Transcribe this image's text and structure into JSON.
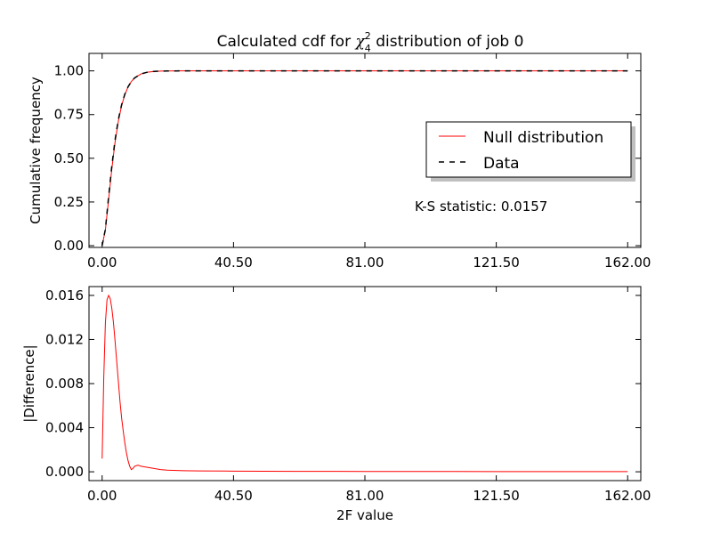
{
  "title": {
    "prefix": "Calculated cdf for ",
    "chi": "χ",
    "sub": "4",
    "sup": "2",
    "suffix": " distribution of job 0"
  },
  "top_panel": {
    "ylabel": "Cumulative frequency",
    "annotation": "K-S statistic: 0.0157",
    "legend_position": "center-right"
  },
  "bottom_panel": {
    "ylabel": "|Difference|",
    "xlabel": "2F value"
  },
  "colors": {
    "null_distribution": "#ff0000",
    "data": "#000000",
    "difference": "#ff0000"
  },
  "chart_data": [
    {
      "type": "line",
      "xlim": [
        -4.05,
        166.05
      ],
      "ylim": [
        -0.01,
        1.1
      ],
      "xticks": [
        0,
        40.5,
        81,
        121.5,
        162
      ],
      "xtick_labels": [
        "0.00",
        "40.50",
        "81.00",
        "121.50",
        "162.00"
      ],
      "yticks": [
        0,
        0.25,
        0.5,
        0.75,
        1.0
      ],
      "ytick_labels": [
        "0.00",
        "0.25",
        "0.50",
        "0.75",
        "1.00"
      ],
      "grid": false,
      "series": [
        {
          "name": "Null distribution",
          "style": "solid",
          "x": [
            0,
            1,
            2,
            3,
            4,
            5,
            6,
            7,
            8,
            9,
            10,
            12,
            14,
            16,
            18,
            20,
            25,
            30,
            40,
            60,
            80,
            100,
            120,
            140,
            162
          ],
          "y": [
            0,
            0.0902,
            0.2642,
            0.4422,
            0.594,
            0.7127,
            0.8009,
            0.8641,
            0.9084,
            0.9389,
            0.9596,
            0.9826,
            0.9927,
            0.997,
            0.9988,
            0.9995,
            1.0,
            1.0,
            1.0,
            1.0,
            1.0,
            1.0,
            1.0,
            1.0,
            1.0
          ]
        },
        {
          "name": "Data",
          "style": "dashed",
          "x": [
            0,
            1,
            2,
            3,
            4,
            5,
            6,
            7,
            8,
            9,
            10,
            12,
            14,
            16,
            18,
            20,
            25,
            30,
            40,
            60,
            80,
            100,
            120,
            140,
            162
          ],
          "y": [
            0,
            0.0942,
            0.2802,
            0.4582,
            0.607,
            0.7217,
            0.8059,
            0.8671,
            0.9094,
            0.939,
            0.9596,
            0.9826,
            0.9927,
            0.997,
            0.9988,
            0.9995,
            1.0,
            1.0,
            1.0,
            1.0,
            1.0,
            1.0,
            1.0,
            1.0,
            1.0
          ]
        }
      ]
    },
    {
      "type": "line",
      "xlim": [
        -4.05,
        166.05
      ],
      "ylim": [
        -0.0008,
        0.0168
      ],
      "xticks": [
        0,
        40.5,
        81,
        121.5,
        162
      ],
      "xtick_labels": [
        "0.00",
        "40.50",
        "81.00",
        "121.50",
        "162.00"
      ],
      "yticks": [
        0,
        0.004,
        0.008,
        0.012,
        0.016
      ],
      "ytick_labels": [
        "0.000",
        "0.004",
        "0.008",
        "0.012",
        "0.016"
      ],
      "grid": false,
      "series": [
        {
          "style": "solid",
          "x": [
            0,
            0.5,
            1,
            1.5,
            2,
            2.5,
            3,
            3.5,
            4,
            4.5,
            5,
            5.5,
            6,
            6.5,
            7,
            7.5,
            8,
            8.5,
            9,
            9.5,
            10,
            11,
            12,
            14,
            16,
            18,
            20,
            25,
            30,
            40,
            60,
            81,
            100,
            121.5,
            140,
            162
          ],
          "y": [
            0.0012,
            0.0085,
            0.0135,
            0.0156,
            0.016,
            0.0157,
            0.0148,
            0.0135,
            0.0118,
            0.01,
            0.0082,
            0.0064,
            0.0049,
            0.0037,
            0.0026,
            0.0017,
            0.001,
            0.0005,
            0.0002,
            0.0003,
            0.0005,
            0.0006,
            0.0005,
            0.0004,
            0.0003,
            0.0002,
            0.00015,
            0.0001,
            8e-05,
            6e-05,
            4e-05,
            3e-05,
            3e-05,
            2e-05,
            2e-05,
            2e-05
          ]
        }
      ]
    }
  ]
}
